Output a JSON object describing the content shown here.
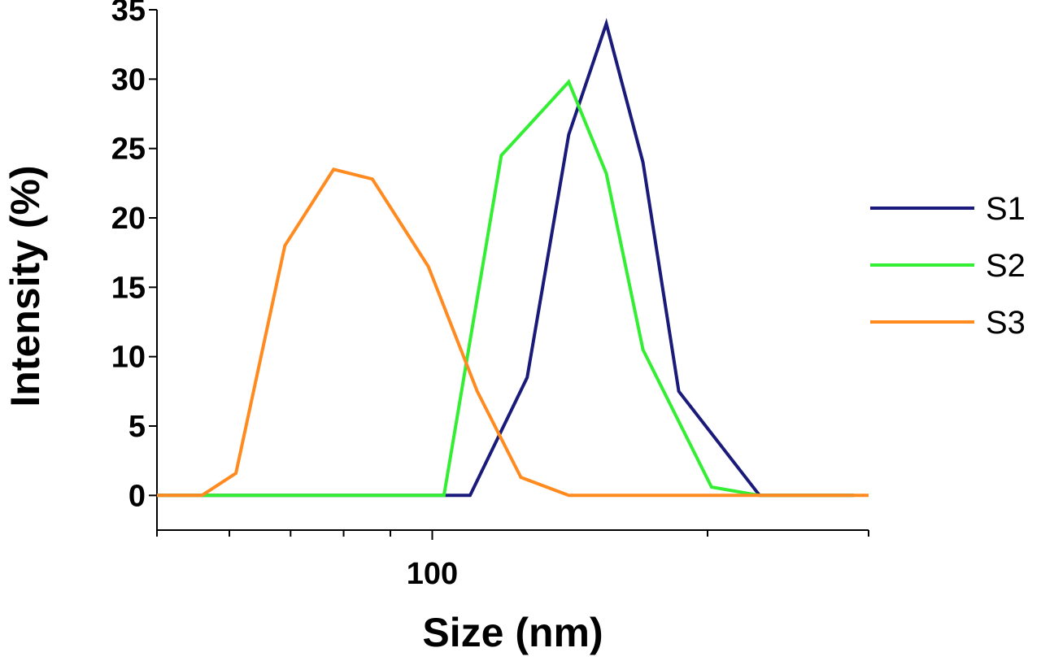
{
  "chart_data": {
    "type": "line",
    "xlabel": "Size (nm)",
    "ylabel": "Intensity (%)",
    "x_scale": "log",
    "xlim": [
      50,
      300
    ],
    "ylim": [
      -2.5,
      35
    ],
    "y_ticks": [
      0,
      5,
      10,
      15,
      20,
      25,
      30,
      35
    ],
    "x_tick_labels": [
      {
        "value": 100,
        "label": "100"
      }
    ],
    "x_minor_ticks": [
      50,
      60,
      70,
      80,
      90,
      100,
      200,
      300
    ],
    "grid": false,
    "legend_position": "right",
    "series": [
      {
        "name": "S1",
        "color": "#1a1a7a",
        "x": [
          50,
          110,
          127,
          141,
          155,
          170,
          186,
          228,
          289
        ],
        "y": [
          0,
          0,
          8.5,
          26,
          34,
          24,
          7.5,
          0,
          0
        ]
      },
      {
        "name": "S2",
        "color": "#33ee33",
        "x": [
          50,
          103,
          119,
          141,
          155,
          170,
          202,
          228,
          289
        ],
        "y": [
          0,
          0,
          24.5,
          29.8,
          23.2,
          10.5,
          0.6,
          0,
          0
        ]
      },
      {
        "name": "S3",
        "color": "#ff8a1f",
        "x": [
          50,
          56,
          61,
          69,
          78,
          86,
          99,
          112,
          125,
          141,
          300
        ],
        "y": [
          0,
          0,
          1.6,
          18,
          23.5,
          22.8,
          16.5,
          7.5,
          1.3,
          0,
          0
        ]
      }
    ]
  }
}
